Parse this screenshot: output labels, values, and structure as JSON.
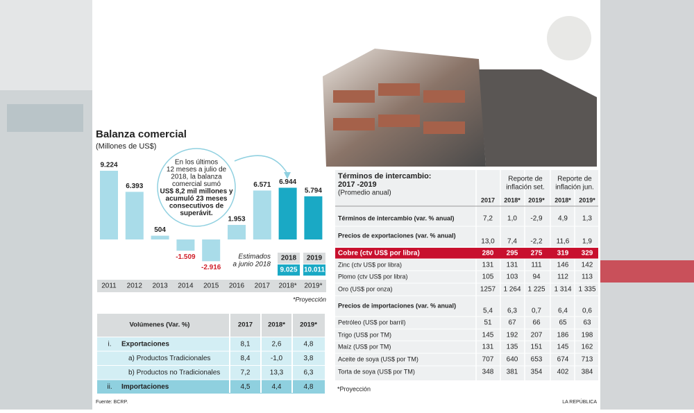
{
  "chart_data": {
    "type": "bar",
    "title": "Balanza comercial",
    "subtitle": "(Millones de US$)",
    "categories": [
      "2011",
      "2012",
      "2013",
      "2014",
      "2015",
      "2016",
      "2017",
      "2018*",
      "2019*"
    ],
    "values": [
      9224,
      6393,
      504,
      -1509,
      -2916,
      1953,
      6571,
      6944,
      5794
    ],
    "value_labels": [
      "9.224",
      "6.393",
      "504",
      "-1.509",
      "-2.916",
      "1.953",
      "6.571",
      "6.944",
      "5.794"
    ],
    "colors": [
      "#a9dce9",
      "#a9dce9",
      "#a9dce9",
      "#a9dce9",
      "#a9dce9",
      "#a9dce9",
      "#a9dce9",
      "#1aa9c5",
      "#1aa9c5"
    ],
    "annotation_lines": [
      "En los últimos",
      "12 meses a julio de",
      "2018, la balanza",
      "comercial sumó",
      "US$ 8,2 mil millones y",
      "acumuló 23 meses",
      "consecutivos de",
      "superávit."
    ],
    "estimates_label": [
      "Estimados",
      "a junio 2018"
    ],
    "estimates": {
      "years": [
        "2018",
        "2019"
      ],
      "values": [
        9025,
        10011
      ],
      "value_labels": [
        "9.025",
        "10.011"
      ]
    },
    "note": "*Proyección"
  },
  "volumes_table": {
    "header": [
      "Volúmenes  (Var. %)",
      "2017",
      "2018*",
      "2019*"
    ],
    "rows": [
      {
        "num": "i.",
        "label": "Exportaciones",
        "values": [
          "8,1",
          "2,6",
          "4,8"
        ]
      },
      {
        "num": "",
        "label": "a) Productos Tradicionales",
        "values": [
          "8,4",
          "-1,0",
          "3,8"
        ]
      },
      {
        "num": "",
        "label": "b) Productos no Tradicionales",
        "values": [
          "7,2",
          "13,3",
          "6,3"
        ]
      },
      {
        "num": "ii.",
        "label": "Importaciones",
        "values": [
          "4,5",
          "4,4",
          "4,8"
        ]
      }
    ]
  },
  "terms_table": {
    "title": [
      "Términos de intercambio:",
      "2017 -2019"
    ],
    "subtitle": "(Promedio anual)",
    "groups": [
      [
        "Reporte de",
        "inflación set."
      ],
      [
        "Reporte de",
        "inflación jun."
      ]
    ],
    "columns": [
      "2017",
      "2018*",
      "2019*",
      "2018*",
      "2019*"
    ],
    "rows": [
      {
        "label": "Términos de intercambio (var. % anual)",
        "values": [
          "7,2",
          "1,0",
          "-2,9",
          "4,9",
          "1,3"
        ]
      },
      {
        "label": "Precios de exportaciones (var. % anual)",
        "values": [
          "13,0",
          "7,4",
          "-2,2",
          "11,6",
          "1,9"
        ]
      },
      {
        "label": "Cobre (ctv US$ por libra)",
        "values": [
          "280",
          "295",
          "275",
          "319",
          "329"
        ]
      },
      {
        "label": "Zinc (ctv US$ por libra)",
        "values": [
          "131",
          "131",
          "111",
          "146",
          "142"
        ]
      },
      {
        "label": "Plomo (ctv US$ por libra)",
        "values": [
          "105",
          "103",
          "94",
          "112",
          "113"
        ]
      },
      {
        "label": "Oro (US$ por onza)",
        "values": [
          "1257",
          "1 264",
          "1 225",
          "1 314",
          "1 335"
        ]
      },
      {
        "label": "Precios de importaciones (var. % anual)",
        "values": [
          "5,4",
          "6,3",
          "0,7",
          "6,4",
          "0,6"
        ]
      },
      {
        "label": "Petróleo (US$ por barril)",
        "values": [
          "51",
          "67",
          "66",
          "65",
          "63"
        ]
      },
      {
        "label": "Trigo (US$ por TM)",
        "values": [
          "145",
          "192",
          "207",
          "186",
          "198"
        ]
      },
      {
        "label": "Maíz (US$ por TM)",
        "values": [
          "131",
          "135",
          "151",
          "145",
          "162"
        ]
      },
      {
        "label": "Aceite de soya (US$ por TM)",
        "values": [
          "707",
          "640",
          "653",
          "674",
          "713"
        ]
      },
      {
        "label": "Torta de soya (US$ por TM)",
        "values": [
          "348",
          "381",
          "354",
          "402",
          "384"
        ]
      }
    ],
    "note": "*Proyección"
  },
  "footer": {
    "source": "Fuente:  BCRP.",
    "brand": "LA REPÚBLICA"
  }
}
